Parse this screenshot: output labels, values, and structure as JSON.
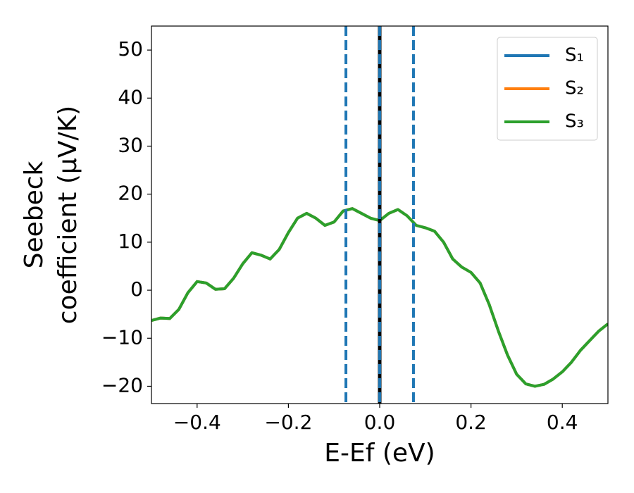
{
  "chart_data": {
    "type": "line",
    "xlabel": "E-Ef (eV)",
    "ylabel": [
      "Seebeck",
      "coefficient  (μV/K)"
    ],
    "x": [
      -0.5,
      -0.48,
      -0.46,
      -0.44,
      -0.42,
      -0.4,
      -0.38,
      -0.36,
      -0.34,
      -0.32,
      -0.3,
      -0.28,
      -0.26,
      -0.24,
      -0.22,
      -0.2,
      -0.18,
      -0.16,
      -0.14,
      -0.12,
      -0.1,
      -0.08,
      -0.06,
      -0.04,
      -0.02,
      0,
      0.02,
      0.04,
      0.06,
      0.08,
      0.1,
      0.12,
      0.14,
      0.16,
      0.18,
      0.2,
      0.22,
      0.24,
      0.26,
      0.28,
      0.3,
      0.32,
      0.34,
      0.36,
      0.38,
      0.4,
      0.42,
      0.44,
      0.46,
      0.48,
      0.5
    ],
    "series": [
      {
        "name": "S₁",
        "color": "#1f77b4",
        "values": [
          -6.3,
          -5.8,
          -5.9,
          -4,
          -0.5,
          1.8,
          1.5,
          0.2,
          0.3,
          2.5,
          5.5,
          7.8,
          7.3,
          6.5,
          8.5,
          12,
          15,
          16,
          15,
          13.5,
          14.2,
          16.5,
          17,
          16,
          15,
          14.5,
          16,
          16.8,
          15.5,
          13.5,
          13,
          12.3,
          10,
          6.5,
          4.8,
          3.7,
          1.5,
          -3,
          -8.5,
          -13.5,
          -17.5,
          -19.5,
          -20,
          -19.6,
          -18.5,
          -17,
          -15,
          -12.5,
          -10.5,
          -8.5,
          -7
        ]
      },
      {
        "name": "S₂",
        "color": "#ff7f0e",
        "values": [
          -6.3,
          -5.8,
          -5.9,
          -4,
          -0.5,
          1.8,
          1.5,
          0.2,
          0.3,
          2.5,
          5.5,
          7.8,
          7.3,
          6.5,
          8.5,
          12,
          15,
          16,
          15,
          13.5,
          14.2,
          16.5,
          17,
          16,
          15,
          14.5,
          16,
          16.8,
          15.5,
          13.5,
          13,
          12.3,
          10,
          6.5,
          4.8,
          3.7,
          1.5,
          -3,
          -8.5,
          -13.5,
          -17.5,
          -19.5,
          -20,
          -19.6,
          -18.5,
          -17,
          -15,
          -12.5,
          -10.5,
          -8.5,
          -7
        ]
      },
      {
        "name": "S₃",
        "color": "#2ca02c",
        "values": [
          -6.3,
          -5.8,
          -5.9,
          -4,
          -0.5,
          1.8,
          1.5,
          0.2,
          0.3,
          2.5,
          5.5,
          7.8,
          7.3,
          6.5,
          8.5,
          12,
          15,
          16,
          15,
          13.5,
          14.2,
          16.5,
          17,
          16,
          15,
          14.5,
          16,
          16.8,
          15.5,
          13.5,
          13,
          12.3,
          10,
          6.5,
          4.8,
          3.7,
          1.5,
          -3,
          -8.5,
          -13.5,
          -17.5,
          -19.5,
          -20,
          -19.6,
          -18.5,
          -17,
          -15,
          -12.5,
          -10.5,
          -8.5,
          -7
        ]
      }
    ],
    "vlines": [
      {
        "x": 0,
        "color": "#000000",
        "style": "solid"
      },
      {
        "x": -0.074,
        "color": "#1f77b4",
        "style": "dashed"
      },
      {
        "x": 0,
        "color": "#1f77b4",
        "style": "dashed"
      },
      {
        "x": 0.074,
        "color": "#1f77b4",
        "style": "dashed"
      }
    ],
    "xlim": [
      -0.5,
      0.5
    ],
    "ylim": [
      -23.6,
      55
    ],
    "xticks": [
      {
        "value": -0.4,
        "label": "−0.4"
      },
      {
        "value": -0.2,
        "label": "−0.2"
      },
      {
        "value": 0,
        "label": "0.0"
      },
      {
        "value": 0.2,
        "label": "0.2"
      },
      {
        "value": 0.4,
        "label": "0.4"
      }
    ],
    "yticks": [
      {
        "value": -20,
        "label": "−20"
      },
      {
        "value": -10,
        "label": "−10"
      },
      0,
      10,
      20,
      30,
      40,
      50
    ],
    "legend": "upper right",
    "grid": false
  }
}
